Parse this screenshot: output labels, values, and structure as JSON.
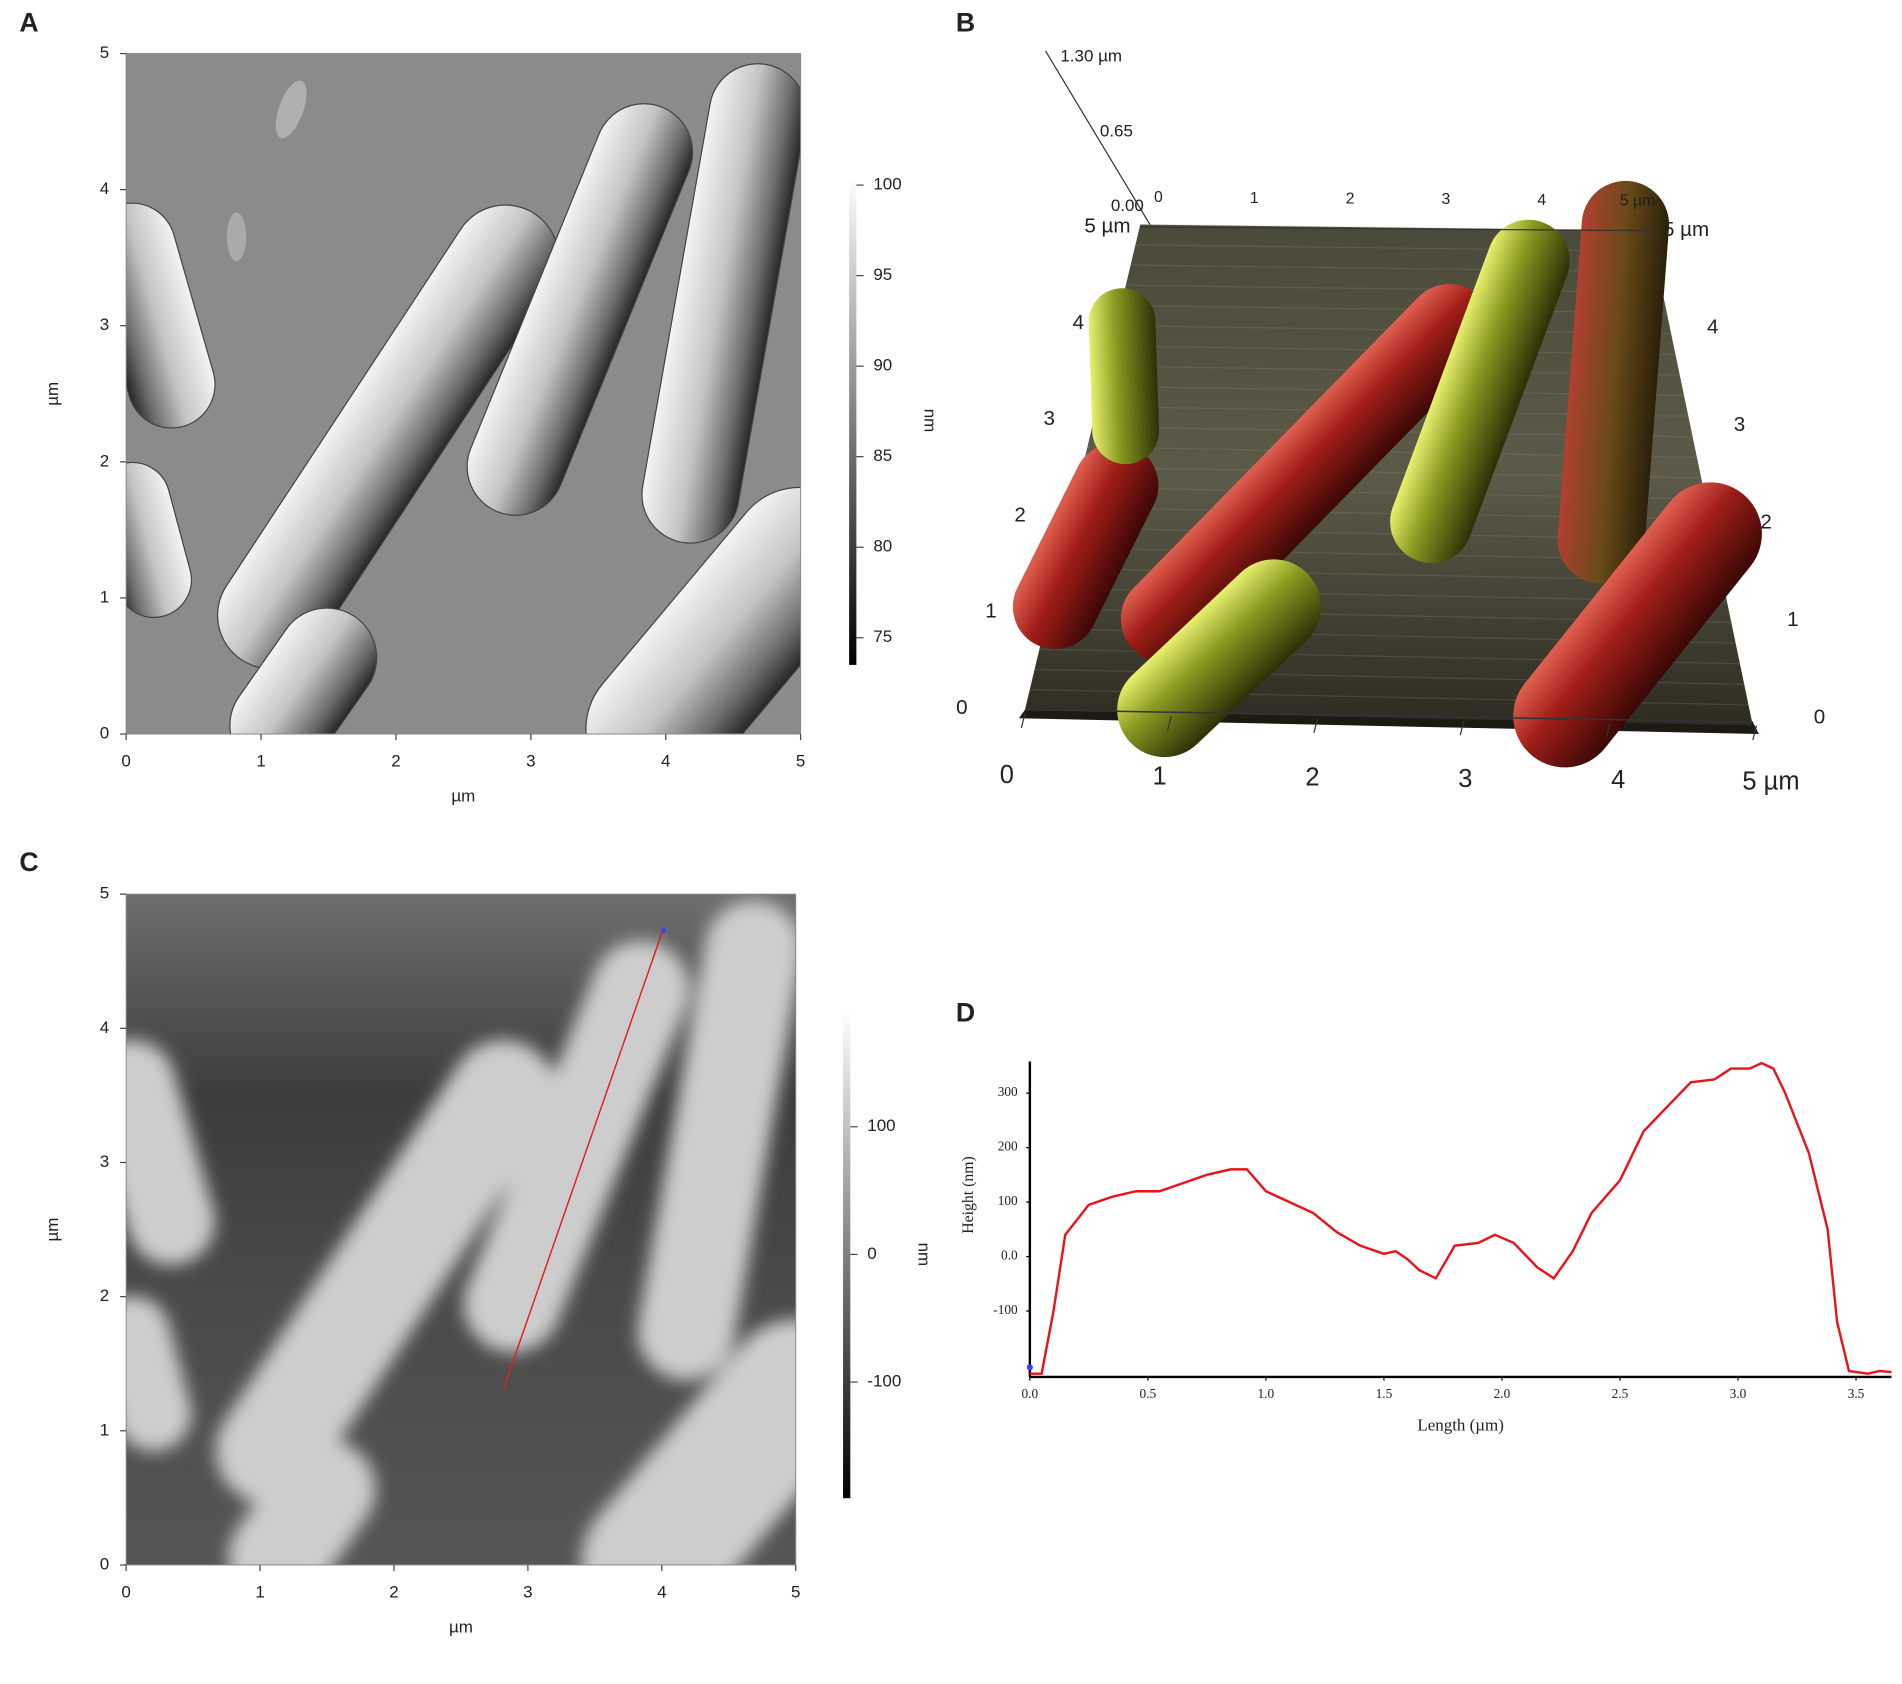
{
  "chart_data": [
    {
      "type": "image",
      "label": "A",
      "style": "amplitude",
      "xlabel": "µm",
      "ylabel": "µm",
      "xlim": [
        0,
        5
      ],
      "ylim": [
        0,
        5
      ],
      "xticks": [
        0,
        1,
        2,
        3,
        4,
        5
      ],
      "yticks": [
        0,
        1,
        2,
        3,
        4,
        5
      ],
      "colorbar": {
        "label": "nm",
        "lim": [
          73.5,
          100.5
        ],
        "ticks": [
          75,
          80,
          85,
          90,
          95,
          100
        ]
      }
    },
    {
      "type": "surface3d",
      "label": "B",
      "xlim": [
        0,
        5
      ],
      "ylim": [
        0,
        5
      ],
      "zlim": [
        0,
        1.3
      ],
      "xticks": [
        0,
        1,
        2,
        3,
        4,
        {
          "value": 5,
          "label": "5 µm"
        }
      ],
      "xticks_top": [
        0,
        1,
        2,
        3,
        4,
        {
          "value": 5,
          "label": "5 µm"
        }
      ],
      "yticks_left": [
        0,
        1,
        2,
        3,
        4,
        {
          "value": 5,
          "label": "5 µm"
        }
      ],
      "yticks_right": [
        0,
        1,
        2,
        3,
        4,
        {
          "value": 5,
          "label": "5 µm"
        }
      ],
      "zticks": [
        {
          "value": 0,
          "label": "0.00"
        },
        0.65,
        {
          "value": 1.3,
          "label": "1.30 µm"
        }
      ]
    },
    {
      "type": "image",
      "label": "C",
      "style": "height",
      "xlabel": "µm",
      "ylabel": "µm",
      "xlim": [
        0,
        5
      ],
      "ylim": [
        0,
        5
      ],
      "xticks": [
        0,
        1,
        2,
        3,
        4,
        5
      ],
      "yticks": [
        0,
        1,
        2,
        3,
        4,
        5
      ],
      "colorbar": {
        "label": "nm",
        "lim": [
          -191,
          191
        ],
        "ticks": [
          -100,
          0,
          100
        ]
      }
    },
    {
      "type": "line",
      "label": "D",
      "xlabel": "Length (µm)",
      "ylabel": "Height (nm)",
      "xlim": [
        0,
        3.65
      ],
      "ylim": [
        -221,
        358
      ],
      "xticks": [
        {
          "value": 0,
          "label": "0.0"
        },
        0.5,
        {
          "value": 1,
          "label": "1.0"
        },
        1.5,
        {
          "value": 2,
          "label": "2.0"
        },
        2.5,
        {
          "value": 3,
          "label": "3.0"
        },
        3.5
      ],
      "yticks": [
        -100,
        {
          "value": 0,
          "label": "0.0"
        },
        100,
        200,
        300
      ],
      "color": "#e8141c",
      "x": [
        0,
        0.05,
        0.1,
        0.15,
        0.25,
        0.35,
        0.45,
        0.55,
        0.65,
        0.75,
        0.85,
        0.92,
        1.0,
        1.1,
        1.2,
        1.3,
        1.4,
        1.5,
        1.55,
        1.6,
        1.65,
        1.72,
        1.8,
        1.9,
        1.97,
        2.05,
        2.15,
        2.22,
        2.3,
        2.38,
        2.5,
        2.6,
        2.7,
        2.8,
        2.9,
        2.97,
        3.05,
        3.1,
        3.15,
        3.2,
        3.3,
        3.38,
        3.42,
        3.47,
        3.55,
        3.6,
        3.65
      ],
      "values": [
        -215,
        -215,
        -100,
        40,
        95,
        110,
        120,
        120,
        135,
        150,
        160,
        160,
        120,
        100,
        80,
        45,
        20,
        5,
        10,
        -5,
        -25,
        -40,
        20,
        25,
        40,
        25,
        -20,
        -40,
        10,
        80,
        140,
        230,
        275,
        320,
        325,
        345,
        345,
        355,
        345,
        300,
        190,
        50,
        -120,
        -210,
        -215,
        -210,
        -212
      ]
    }
  ]
}
